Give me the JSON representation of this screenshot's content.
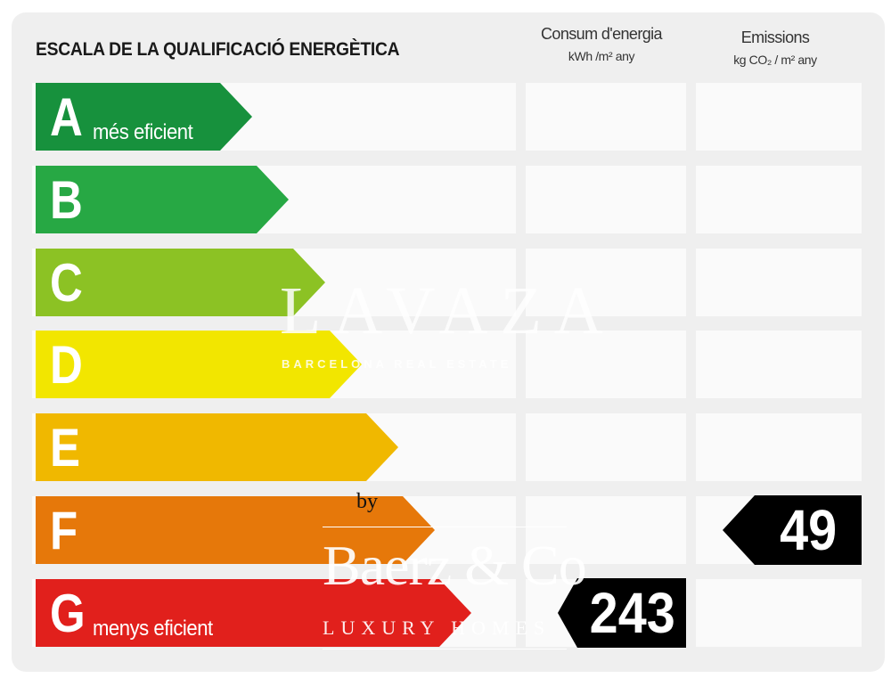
{
  "header": {
    "title": "ESCALA DE LA QUALIFICACIÓ ENERGÈTICA",
    "consumption_title": "Consum d'energia",
    "consumption_unit": "kWh /m² any",
    "emissions_title": "Emissions",
    "emissions_unit": "kg CO₂ / m² any"
  },
  "ratings": [
    {
      "letter": "A",
      "sublabel": "més eficient",
      "color": "#17913d"
    },
    {
      "letter": "B",
      "sublabel": "",
      "color": "#27a844"
    },
    {
      "letter": "C",
      "sublabel": "",
      "color": "#8cc224"
    },
    {
      "letter": "D",
      "sublabel": "",
      "color": "#f2e600"
    },
    {
      "letter": "E",
      "sublabel": "",
      "color": "#f0b800"
    },
    {
      "letter": "F",
      "sublabel": "",
      "color": "#e6780a"
    },
    {
      "letter": "G",
      "sublabel": "menys eficient",
      "color": "#e1201c"
    }
  ],
  "values": {
    "consumption": "243",
    "consumption_rating": "G",
    "emissions": "49",
    "emissions_rating": "F"
  },
  "watermark": {
    "top_logo": "LAVAZA",
    "top_sub": "BARCELONA REAL ESTATE",
    "by": "by",
    "brand": "Baerz & Co",
    "brand_sub": "LUXURY HOMES"
  }
}
